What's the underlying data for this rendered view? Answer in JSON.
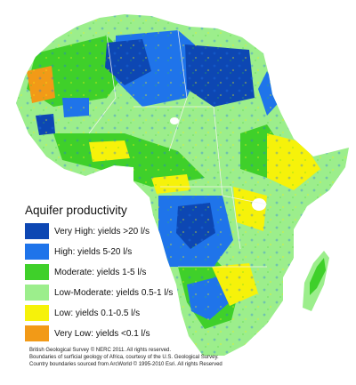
{
  "legend": {
    "title": "Aquifer productivity",
    "items": [
      {
        "label": "Very High: yields >20 l/s",
        "color": "#0d47b3"
      },
      {
        "label": "High: yields 5-20 l/s",
        "color": "#1f74ea"
      },
      {
        "label": "Moderate: yields 1-5 l/s",
        "color": "#3fd02a"
      },
      {
        "label": "Low-Moderate: yields 0.5-1 l/s",
        "color": "#9cee8c"
      },
      {
        "label": "Low: yields 0.1-0.5 l/s",
        "color": "#f6f20a"
      },
      {
        "label": "Very Low: yields <0.1 l/s",
        "color": "#f29a17"
      }
    ]
  },
  "credits": {
    "line1": "British Geological Survey © NERC 2011.  All rights reserved.",
    "line2": "Boundaries of surficial geology of Africa, courtesy of the U.S. Geological Survey.",
    "line3": "Country boundaries sourced from ArcWorld © 1995-2010 Esri.  All rights Reserved"
  },
  "colors": {
    "background": "#ffffff",
    "country_border": "#f4f4f4",
    "lake": "#ffffff"
  }
}
